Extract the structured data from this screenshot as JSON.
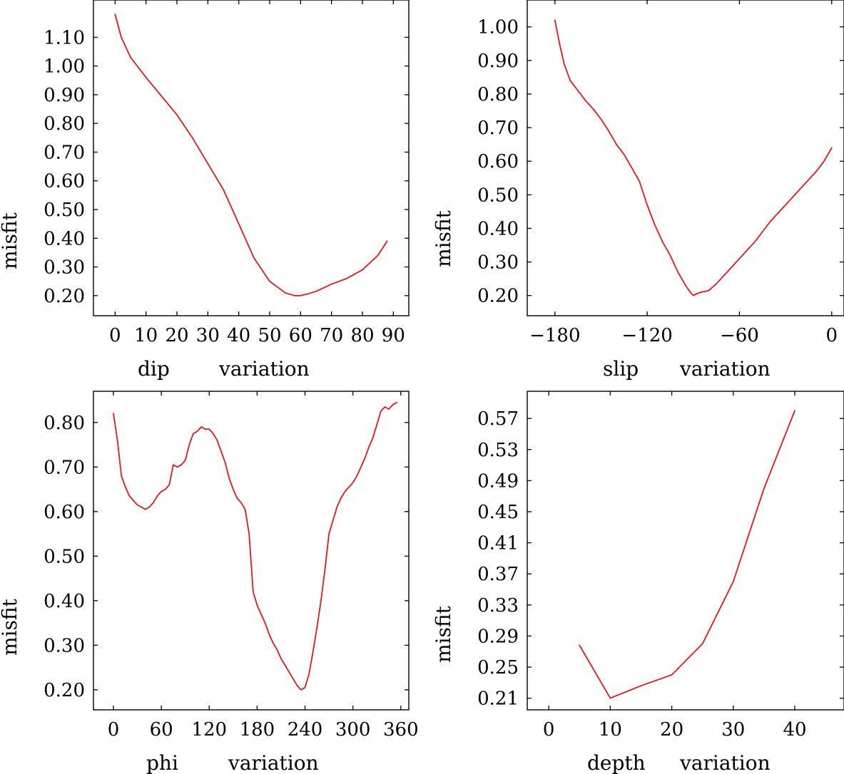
{
  "figure": {
    "line_color": "#e8161b",
    "axis_color": "#000000"
  },
  "chart_data": [
    {
      "id": "dip",
      "type": "line",
      "xlabel_left": "dip",
      "xlabel_right": "variation",
      "ylabel": "misfit",
      "xlim": [
        -7,
        95
      ],
      "ylim": [
        0.13,
        1.23
      ],
      "xticks": [
        0,
        10,
        20,
        30,
        40,
        50,
        60,
        70,
        80,
        90
      ],
      "xtick_labels": [
        "0",
        "10",
        "20",
        "30",
        "40",
        "50",
        "60",
        "70",
        "80",
        "90"
      ],
      "yticks": [
        0.2,
        0.3,
        0.4,
        0.5,
        0.6,
        0.7,
        0.8,
        0.9,
        1.0,
        1.1
      ],
      "ytick_labels": [
        "0.20",
        "0.30",
        "0.40",
        "0.50",
        "0.60",
        "0.70",
        "0.80",
        "0.90",
        "1.00",
        "1.10"
      ],
      "series": [
        {
          "name": "misfit",
          "x": [
            0,
            2,
            5,
            10,
            20,
            25,
            30,
            35,
            40,
            45,
            50,
            55,
            58,
            60,
            62,
            65,
            70,
            75,
            80,
            85,
            88
          ],
          "y": [
            1.18,
            1.1,
            1.03,
            0.96,
            0.83,
            0.75,
            0.66,
            0.57,
            0.45,
            0.33,
            0.25,
            0.21,
            0.2,
            0.2,
            0.205,
            0.215,
            0.24,
            0.26,
            0.29,
            0.34,
            0.39
          ]
        }
      ]
    },
    {
      "id": "slip",
      "type": "line",
      "xlabel_left": "slip",
      "xlabel_right": "variation",
      "ylabel": "misfit",
      "xlim": [
        -198,
        8
      ],
      "ylim": [
        0.14,
        1.08
      ],
      "xticks": [
        -180,
        -120,
        -60,
        0
      ],
      "xtick_labels": [
        "−180",
        "−120",
        "−60",
        "0"
      ],
      "yticks": [
        0.2,
        0.3,
        0.4,
        0.5,
        0.6,
        0.7,
        0.8,
        0.9,
        1.0
      ],
      "ytick_labels": [
        "0.20",
        "0.30",
        "0.40",
        "0.50",
        "0.60",
        "0.70",
        "0.80",
        "0.90",
        "1.00"
      ],
      "series": [
        {
          "name": "misfit",
          "x": [
            -180,
            -177,
            -174,
            -170,
            -165,
            -160,
            -155,
            -150,
            -145,
            -140,
            -135,
            -130,
            -125,
            -120,
            -115,
            -110,
            -105,
            -100,
            -95,
            -92,
            -90,
            -88,
            -85,
            -80,
            -75,
            -70,
            -60,
            -50,
            -40,
            -30,
            -20,
            -10,
            -5,
            0
          ],
          "y": [
            1.02,
            0.95,
            0.89,
            0.84,
            0.81,
            0.78,
            0.755,
            0.725,
            0.69,
            0.65,
            0.62,
            0.58,
            0.54,
            0.47,
            0.41,
            0.36,
            0.32,
            0.27,
            0.23,
            0.21,
            0.2,
            0.205,
            0.21,
            0.215,
            0.235,
            0.26,
            0.31,
            0.36,
            0.42,
            0.47,
            0.52,
            0.57,
            0.6,
            0.64
          ]
        }
      ]
    },
    {
      "id": "phi",
      "type": "line",
      "xlabel_left": "phi",
      "xlabel_right": "variation",
      "ylabel": "misfit",
      "xlim": [
        -25,
        370
      ],
      "ylim": [
        0.155,
        0.87
      ],
      "xticks": [
        0,
        60,
        120,
        180,
        240,
        300,
        360
      ],
      "xtick_labels": [
        "0",
        "60",
        "120",
        "180",
        "240",
        "300",
        "360"
      ],
      "yticks": [
        0.2,
        0.3,
        0.4,
        0.5,
        0.6,
        0.7,
        0.8
      ],
      "ytick_labels": [
        "0.20",
        "0.30",
        "0.40",
        "0.50",
        "0.60",
        "0.70",
        "0.80"
      ],
      "series": [
        {
          "name": "misfit",
          "x": [
            0,
            5,
            10,
            15,
            20,
            25,
            30,
            35,
            40,
            45,
            50,
            55,
            60,
            65,
            70,
            75,
            80,
            85,
            90,
            95,
            100,
            105,
            110,
            115,
            120,
            125,
            130,
            135,
            140,
            145,
            150,
            155,
            160,
            165,
            170,
            175,
            180,
            185,
            190,
            195,
            200,
            205,
            210,
            215,
            220,
            225,
            230,
            235,
            240,
            245,
            250,
            255,
            260,
            265,
            270,
            275,
            280,
            285,
            290,
            295,
            300,
            305,
            310,
            315,
            320,
            325,
            330,
            335,
            340,
            345,
            350,
            355
          ],
          "y": [
            0.82,
            0.76,
            0.68,
            0.655,
            0.635,
            0.625,
            0.615,
            0.61,
            0.605,
            0.61,
            0.62,
            0.635,
            0.645,
            0.65,
            0.66,
            0.705,
            0.7,
            0.705,
            0.715,
            0.75,
            0.775,
            0.78,
            0.79,
            0.785,
            0.785,
            0.775,
            0.76,
            0.735,
            0.71,
            0.675,
            0.65,
            0.63,
            0.62,
            0.605,
            0.55,
            0.42,
            0.39,
            0.37,
            0.35,
            0.325,
            0.305,
            0.29,
            0.27,
            0.255,
            0.24,
            0.225,
            0.21,
            0.2,
            0.205,
            0.235,
            0.285,
            0.34,
            0.4,
            0.47,
            0.55,
            0.58,
            0.61,
            0.63,
            0.645,
            0.655,
            0.665,
            0.68,
            0.7,
            0.72,
            0.745,
            0.765,
            0.795,
            0.825,
            0.835,
            0.83,
            0.84,
            0.845
          ]
        }
      ]
    },
    {
      "id": "depth",
      "type": "line",
      "xlabel_left": "depth",
      "xlabel_right": "variation",
      "ylabel": "misfit",
      "xlim": [
        -3.5,
        48
      ],
      "ylim": [
        0.195,
        0.605
      ],
      "xticks": [
        0,
        10,
        20,
        30,
        40
      ],
      "xtick_labels": [
        "0",
        "10",
        "20",
        "30",
        "40"
      ],
      "yticks": [
        0.21,
        0.25,
        0.29,
        0.33,
        0.37,
        0.41,
        0.45,
        0.49,
        0.53,
        0.57
      ],
      "ytick_labels": [
        "0.21",
        "0.25",
        "0.29",
        "0.33",
        "0.37",
        "0.41",
        "0.45",
        "0.49",
        "0.53",
        "0.57"
      ],
      "series": [
        {
          "name": "misfit",
          "x": [
            5,
            10,
            15,
            20,
            25,
            30,
            35,
            40
          ],
          "y": [
            0.278,
            0.21,
            0.226,
            0.24,
            0.28,
            0.36,
            0.48,
            0.58
          ]
        }
      ]
    }
  ]
}
